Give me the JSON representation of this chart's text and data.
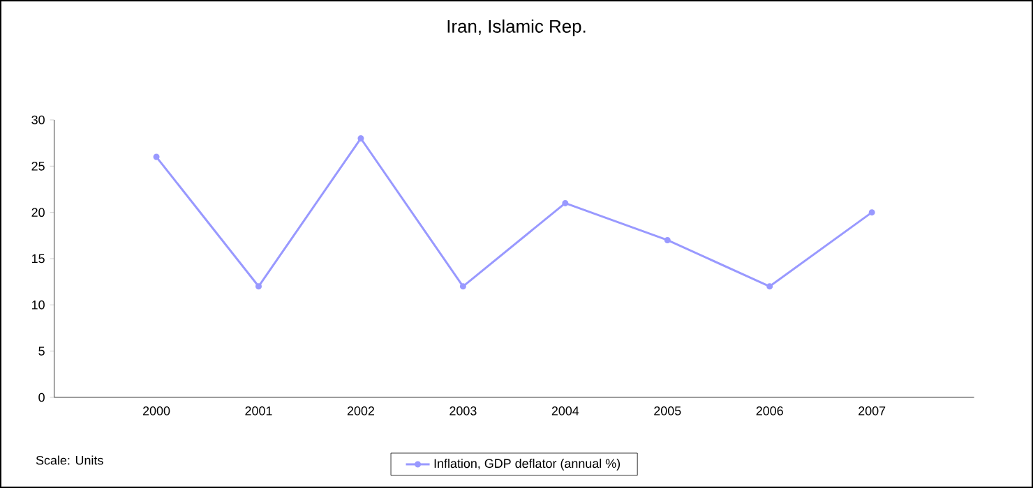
{
  "chart_data": {
    "type": "line",
    "title": "Iran, Islamic Rep.",
    "categories": [
      "2000",
      "2001",
      "2002",
      "2003",
      "2004",
      "2005",
      "2006",
      "2007"
    ],
    "series": [
      {
        "name": "Inflation, GDP deflator (annual %)",
        "color": "#9999ff",
        "values": [
          26,
          12,
          28,
          12,
          21,
          17,
          12,
          20
        ]
      }
    ],
    "ylim": [
      0,
      30
    ],
    "yticks": [
      0,
      5,
      10,
      15,
      20,
      25,
      30
    ],
    "grid": false,
    "legend": "bottom",
    "marker": "circle",
    "line_style": "solid",
    "annotations": [
      "Scale: Units"
    ]
  }
}
